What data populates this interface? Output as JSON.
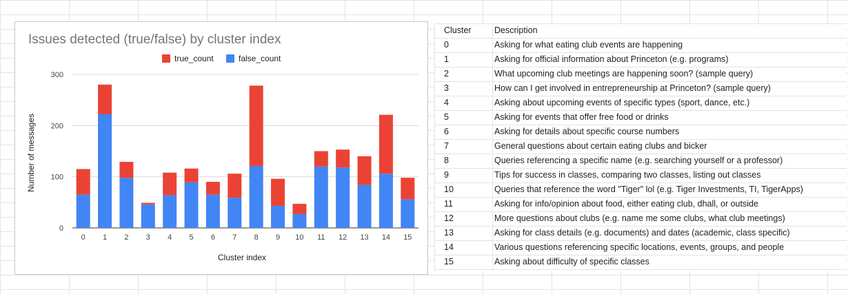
{
  "chart_data": {
    "type": "bar",
    "stacked": true,
    "title": "Issues detected (true/false) by cluster index",
    "xlabel": "Cluster index",
    "ylabel": "Number of messages",
    "ylim": [
      0,
      300
    ],
    "yticks": [
      0,
      100,
      200,
      300
    ],
    "legend_position": "top",
    "categories": [
      "0",
      "1",
      "2",
      "3",
      "4",
      "5",
      "6",
      "7",
      "8",
      "9",
      "10",
      "11",
      "12",
      "13",
      "14",
      "15"
    ],
    "series": [
      {
        "name": "false_count",
        "color": "#4285f4",
        "values": [
          65,
          222,
          98,
          46,
          64,
          89,
          65,
          59,
          121,
          43,
          27,
          120,
          118,
          84,
          106,
          56
        ]
      },
      {
        "name": "true_count",
        "color": "#ea4335",
        "values": [
          50,
          58,
          31,
          3,
          44,
          27,
          25,
          47,
          157,
          53,
          20,
          30,
          35,
          56,
          115,
          42
        ]
      }
    ]
  },
  "table": {
    "headers": [
      "Cluster",
      "Description"
    ],
    "rows": [
      [
        "0",
        "Asking for what eating club events are happening"
      ],
      [
        "1",
        "Asking for official information about Princeton (e.g. programs)"
      ],
      [
        "2",
        "What upcoming club meetings are happening soon? (sample query)"
      ],
      [
        "3",
        "How can I get involved in entrepreneurship at Princeton? (sample query)"
      ],
      [
        "4",
        "Asking about upcoming events of specific types (sport, dance, etc.)"
      ],
      [
        "5",
        "Asking for events that offer free food or drinks"
      ],
      [
        "6",
        "Asking for details about specific course numbers"
      ],
      [
        "7",
        "General questions about certain eating clubs and bicker"
      ],
      [
        "8",
        "Queries referencing a specific name (e.g. searching yourself or a professor)"
      ],
      [
        "9",
        "Tips for success in classes, comparing two classes, listing out classes"
      ],
      [
        "10",
        "Queries that reference the word \"Tiger\" lol (e.g. Tiger Investments, TI, TigerApps)"
      ],
      [
        "11",
        "Asking for info/opinion about food, either eating club, dhall, or outside"
      ],
      [
        "12",
        "More questions about clubs (e.g. name me some clubs, what club meetings)"
      ],
      [
        "13",
        "Asking for class details (e.g. documents) and dates (academic, class specific)"
      ],
      [
        "14",
        "Various questions referencing specific locations, events, groups, and people"
      ],
      [
        "15",
        "Asking about difficulty of specific classes"
      ]
    ]
  }
}
